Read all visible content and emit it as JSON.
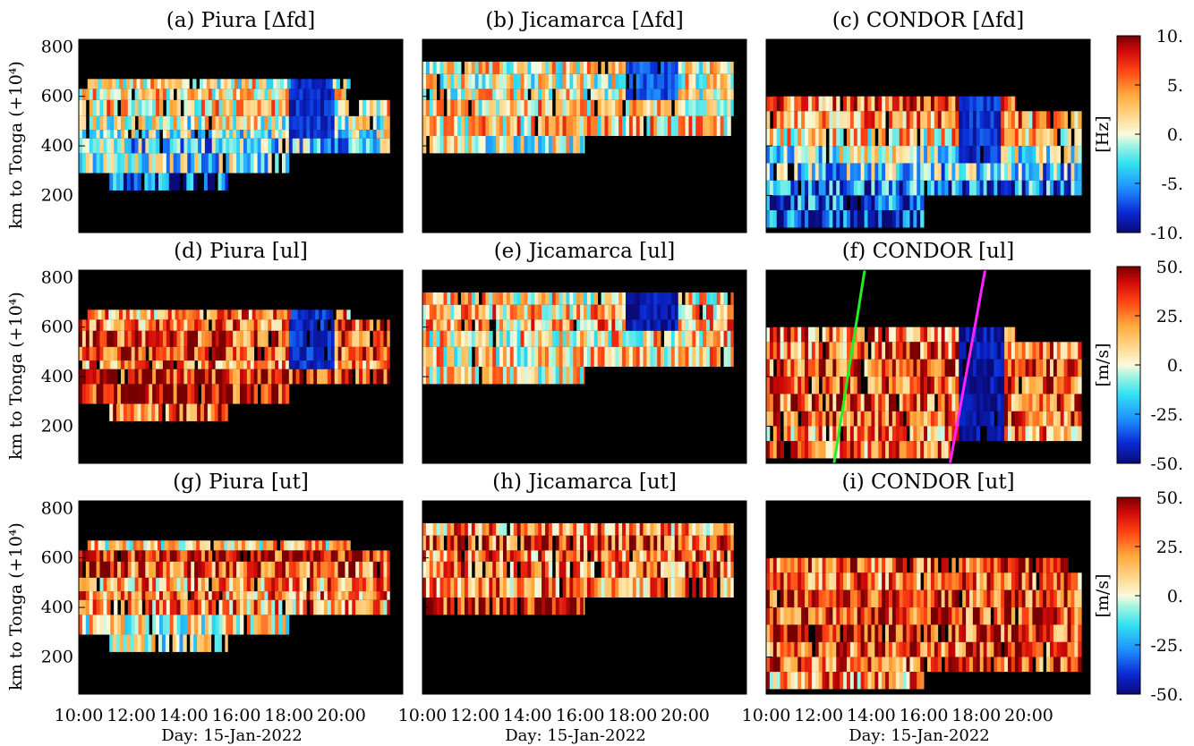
{
  "chart_data": {
    "type": "heatmap",
    "rows": [
      {
        "colorbar": {
          "label": "[Hz]",
          "ticks": [
            {
              "v": 10,
              "text": "10."
            },
            {
              "v": 5,
              "text": "5."
            },
            {
              "v": 0,
              "text": "0."
            },
            {
              "v": -5,
              "text": "-5."
            },
            {
              "v": -10,
              "text": "-10."
            }
          ],
          "range": [
            -10,
            10
          ]
        }
      },
      {
        "colorbar": {
          "label": "[m/s]",
          "ticks": [
            {
              "v": 50,
              "text": "50."
            },
            {
              "v": 25,
              "text": "25."
            },
            {
              "v": 0,
              "text": "0."
            },
            {
              "v": -25,
              "text": "-25."
            },
            {
              "v": -50,
              "text": "-50."
            }
          ],
          "range": [
            -50,
            50
          ]
        }
      },
      {
        "colorbar": {
          "label": "[m/s]",
          "ticks": [
            {
              "v": 50,
              "text": "50."
            },
            {
              "v": 25,
              "text": "25."
            },
            {
              "v": 0,
              "text": "0."
            },
            {
              "v": -25,
              "text": "-25."
            },
            {
              "v": -50,
              "text": "-50."
            }
          ],
          "range": [
            -50,
            50
          ]
        }
      }
    ],
    "ylabel": "km to Tonga (+10⁴)",
    "ylim": [
      50,
      830
    ],
    "yticks": [
      200,
      400,
      600,
      800
    ],
    "xlim": [
      "10:00",
      "22:20"
    ],
    "xticks": [
      "10:00",
      "12:00",
      "14:00",
      "16:00",
      "18:00",
      "20:00"
    ],
    "xlabel": "Day: 15-Jan-2022",
    "panels": [
      {
        "title": "(a) Piura [Δfd]",
        "bands": [
          {
            "y": [
              630,
              670
            ],
            "x": [
              "10:20",
              "20:20"
            ],
            "mean": 1
          },
          {
            "y": [
              585,
              630
            ],
            "x": [
              "10:00",
              "20:10"
            ],
            "mean": 2
          },
          {
            "y": [
              520,
              585
            ],
            "x": [
              "10:00",
              "21:50"
            ],
            "mean": 2
          },
          {
            "y": [
              465,
              520
            ],
            "x": [
              "10:00",
              "21:50"
            ],
            "mean": 0
          },
          {
            "y": [
              430,
              465
            ],
            "x": [
              "10:00",
              "21:50"
            ],
            "mean": -1
          },
          {
            "y": [
              370,
              430
            ],
            "x": [
              "10:00",
              "21:50"
            ],
            "mean": -3
          },
          {
            "y": [
              290,
              370
            ],
            "x": [
              "10:00",
              "18:00"
            ],
            "mean": -2
          },
          {
            "y": [
              220,
              290
            ],
            "x": [
              "11:10",
              "15:40"
            ],
            "mean": -7
          }
        ],
        "dark_zones": [
          {
            "x": [
              "18:00",
              "19:40"
            ],
            "y": [
              430,
              670
            ],
            "mean": -8
          }
        ]
      },
      {
        "title": "(b) Jicamarca [Δfd]",
        "bands": [
          {
            "y": [
              690,
              740
            ],
            "x": [
              "10:00",
              "21:50"
            ],
            "mean": 1
          },
          {
            "y": [
              630,
              690
            ],
            "x": [
              "10:00",
              "21:50"
            ],
            "mean": 1
          },
          {
            "y": [
              585,
              630
            ],
            "x": [
              "10:00",
              "21:50"
            ],
            "mean": 1
          },
          {
            "y": [
              520,
              585
            ],
            "x": [
              "10:00",
              "21:50"
            ],
            "mean": 2
          },
          {
            "y": [
              440,
              520
            ],
            "x": [
              "10:00",
              "21:50"
            ],
            "mean": 2
          },
          {
            "y": [
              370,
              440
            ],
            "x": [
              "10:00",
              "16:10"
            ],
            "mean": 0
          }
        ],
        "dark_zones": [
          {
            "x": [
              "17:40",
              "19:40"
            ],
            "y": [
              585,
              740
            ],
            "mean": -7
          }
        ]
      },
      {
        "title": "(c) CONDOR [Δfd]",
        "bands": [
          {
            "y": [
              540,
              600
            ],
            "x": [
              "10:00",
              "19:30"
            ],
            "mean": 5
          },
          {
            "y": [
              470,
              540
            ],
            "x": [
              "10:00",
              "22:00"
            ],
            "mean": 4
          },
          {
            "y": [
              400,
              470
            ],
            "x": [
              "10:00",
              "22:00"
            ],
            "mean": 2
          },
          {
            "y": [
              330,
              400
            ],
            "x": [
              "10:00",
              "22:00"
            ],
            "mean": -1
          },
          {
            "y": [
              260,
              330
            ],
            "x": [
              "10:00",
              "22:00"
            ],
            "mean": -3
          },
          {
            "y": [
              200,
              260
            ],
            "x": [
              "10:00",
              "22:00"
            ],
            "mean": -6
          },
          {
            "y": [
              140,
              200
            ],
            "x": [
              "10:00",
              "16:00"
            ],
            "mean": -7
          },
          {
            "y": [
              70,
              140
            ],
            "x": [
              "10:00",
              "16:00"
            ],
            "mean": -8
          }
        ],
        "dark_zones": [
          {
            "x": [
              "17:20",
              "18:50"
            ],
            "y": [
              330,
              600
            ],
            "mean": -8
          }
        ]
      },
      {
        "title": "(d) Piura [ul]",
        "bands": [
          {
            "y": [
              630,
              670
            ],
            "x": [
              "10:20",
              "20:20"
            ],
            "mean": 20
          },
          {
            "y": [
              585,
              630
            ],
            "x": [
              "10:00",
              "21:50"
            ],
            "mean": 25
          },
          {
            "y": [
              520,
              585
            ],
            "x": [
              "10:00",
              "21:50"
            ],
            "mean": 35
          },
          {
            "y": [
              465,
              520
            ],
            "x": [
              "10:00",
              "21:50"
            ],
            "mean": 35
          },
          {
            "y": [
              430,
              465
            ],
            "x": [
              "10:00",
              "21:50"
            ],
            "mean": 25
          },
          {
            "y": [
              370,
              430
            ],
            "x": [
              "10:00",
              "21:50"
            ],
            "mean": 40
          },
          {
            "y": [
              290,
              370
            ],
            "x": [
              "10:00",
              "18:00"
            ],
            "mean": 40
          },
          {
            "y": [
              220,
              290
            ],
            "x": [
              "11:10",
              "15:40"
            ],
            "mean": 30
          }
        ],
        "dark_zones": [
          {
            "x": [
              "18:00",
              "19:40"
            ],
            "y": [
              430,
              670
            ],
            "mean": -40
          }
        ]
      },
      {
        "title": "(e) Jicamarca [ul]",
        "bands": [
          {
            "y": [
              690,
              740
            ],
            "x": [
              "10:00",
              "21:50"
            ],
            "mean": 10
          },
          {
            "y": [
              630,
              690
            ],
            "x": [
              "10:00",
              "21:50"
            ],
            "mean": 15
          },
          {
            "y": [
              585,
              630
            ],
            "x": [
              "10:00",
              "21:50"
            ],
            "mean": 15
          },
          {
            "y": [
              520,
              585
            ],
            "x": [
              "10:00",
              "21:50"
            ],
            "mean": 10
          },
          {
            "y": [
              440,
              520
            ],
            "x": [
              "10:00",
              "21:50"
            ],
            "mean": 10
          },
          {
            "y": [
              370,
              440
            ],
            "x": [
              "10:00",
              "16:10"
            ],
            "mean": 5
          }
        ],
        "dark_zones": [
          {
            "x": [
              "17:40",
              "19:40"
            ],
            "y": [
              585,
              740
            ],
            "mean": -45
          }
        ]
      },
      {
        "title": "(f) CONDOR [ul]",
        "bands": [
          {
            "y": [
              540,
              600
            ],
            "x": [
              "10:00",
              "19:30"
            ],
            "mean": 25
          },
          {
            "y": [
              470,
              540
            ],
            "x": [
              "10:00",
              "22:00"
            ],
            "mean": 25
          },
          {
            "y": [
              400,
              470
            ],
            "x": [
              "10:00",
              "22:00"
            ],
            "mean": 30
          },
          {
            "y": [
              330,
              400
            ],
            "x": [
              "10:00",
              "22:00"
            ],
            "mean": 30
          },
          {
            "y": [
              260,
              330
            ],
            "x": [
              "10:00",
              "22:00"
            ],
            "mean": 30
          },
          {
            "y": [
              200,
              260
            ],
            "x": [
              "10:00",
              "22:00"
            ],
            "mean": 30
          },
          {
            "y": [
              140,
              200
            ],
            "x": [
              "10:00",
              "22:00"
            ],
            "mean": 20
          },
          {
            "y": [
              70,
              140
            ],
            "x": [
              "10:00",
              "17:00"
            ],
            "mean": 25
          }
        ],
        "dark_zones": [
          {
            "x": [
              "17:20",
              "19:00"
            ],
            "y": [
              140,
              600
            ],
            "mean": -45
          }
        ],
        "lines": [
          {
            "color": "#22ee22",
            "x": [
              "12:35",
              "13:45"
            ],
            "y": [
              50,
              830
            ]
          },
          {
            "color": "#ff22ff",
            "x": [
              "17:00",
              "18:20"
            ],
            "y": [
              50,
              830
            ]
          }
        ]
      },
      {
        "title": "(g) Piura [ut]",
        "bands": [
          {
            "y": [
              630,
              670
            ],
            "x": [
              "10:20",
              "20:20"
            ],
            "mean": 10
          },
          {
            "y": [
              585,
              630
            ],
            "x": [
              "10:00",
              "21:50"
            ],
            "mean": 40
          },
          {
            "y": [
              520,
              585
            ],
            "x": [
              "10:00",
              "21:50"
            ],
            "mean": 30
          },
          {
            "y": [
              465,
              520
            ],
            "x": [
              "10:00",
              "21:50"
            ],
            "mean": 20
          },
          {
            "y": [
              430,
              465
            ],
            "x": [
              "10:00",
              "21:50"
            ],
            "mean": 20
          },
          {
            "y": [
              370,
              430
            ],
            "x": [
              "10:00",
              "21:50"
            ],
            "mean": 20
          },
          {
            "y": [
              290,
              370
            ],
            "x": [
              "10:00",
              "18:00"
            ],
            "mean": 5
          },
          {
            "y": [
              220,
              290
            ],
            "x": [
              "11:10",
              "15:40"
            ],
            "mean": 0
          }
        ]
      },
      {
        "title": "(h) Jicamarca [ut]",
        "bands": [
          {
            "y": [
              690,
              740
            ],
            "x": [
              "10:00",
              "21:50"
            ],
            "mean": 20
          },
          {
            "y": [
              630,
              690
            ],
            "x": [
              "10:00",
              "21:50"
            ],
            "mean": 30
          },
          {
            "y": [
              585,
              630
            ],
            "x": [
              "10:00",
              "21:50"
            ],
            "mean": 25
          },
          {
            "y": [
              520,
              585
            ],
            "x": [
              "10:00",
              "21:50"
            ],
            "mean": 25
          },
          {
            "y": [
              440,
              520
            ],
            "x": [
              "10:00",
              "21:50"
            ],
            "mean": 20
          },
          {
            "y": [
              370,
              440
            ],
            "x": [
              "10:00",
              "16:10"
            ],
            "mean": 40
          }
        ]
      },
      {
        "title": "(i) CONDOR [ut]",
        "bands": [
          {
            "y": [
              540,
              600
            ],
            "x": [
              "10:00",
              "21:30"
            ],
            "mean": 30
          },
          {
            "y": [
              470,
              540
            ],
            "x": [
              "10:00",
              "22:00"
            ],
            "mean": 25
          },
          {
            "y": [
              400,
              470
            ],
            "x": [
              "10:00",
              "22:00"
            ],
            "mean": 35
          },
          {
            "y": [
              330,
              400
            ],
            "x": [
              "10:00",
              "22:00"
            ],
            "mean": 35
          },
          {
            "y": [
              260,
              330
            ],
            "x": [
              "10:00",
              "22:00"
            ],
            "mean": 35
          },
          {
            "y": [
              200,
              260
            ],
            "x": [
              "10:00",
              "22:00"
            ],
            "mean": 30
          },
          {
            "y": [
              140,
              200
            ],
            "x": [
              "10:00",
              "22:00"
            ],
            "mean": 30
          },
          {
            "y": [
              70,
              140
            ],
            "x": [
              "10:00",
              "16:00"
            ],
            "mean": 20
          }
        ]
      }
    ]
  }
}
